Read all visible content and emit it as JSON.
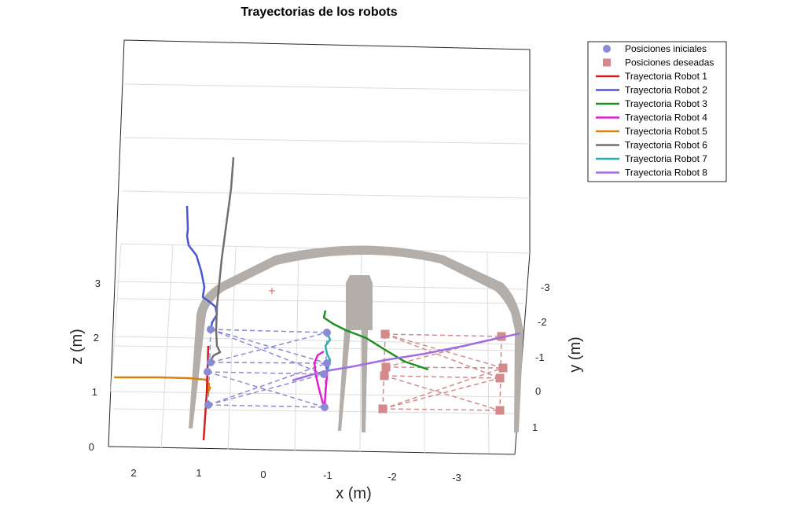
{
  "chart_data": {
    "type": "line3d",
    "title": "Trayectorias de los robots",
    "xlabel": "x (m)",
    "ylabel": "y (m)",
    "zlabel": "z (m)",
    "xticks": [
      "2",
      "1",
      "0",
      "-1",
      "-2",
      "-3"
    ],
    "yticks": [
      "-3",
      "-2",
      "-1",
      "0",
      "1"
    ],
    "zticks": [
      "0",
      "1",
      "2",
      "3"
    ],
    "grid": true,
    "legend_position": "top-right",
    "legend": [
      {
        "label": "Posiciones iniciales",
        "marker": "circle",
        "color": "#8a8ad6"
      },
      {
        "label": "Posiciones deseadas",
        "marker": "square",
        "color": "#d48a8a"
      },
      {
        "label": "Trayectoria Robot 1",
        "color": "#d11f1f"
      },
      {
        "label": "Trayectoria Robot 2",
        "color": "#4a55d8"
      },
      {
        "label": "Trayectoria Robot 3",
        "color": "#1f8f1f"
      },
      {
        "label": "Trayectoria Robot 4",
        "color": "#e01fd0"
      },
      {
        "label": "Trayectoria Robot 5",
        "color": "#d9820f"
      },
      {
        "label": "Trayectoria Robot 6",
        "color": "#707070"
      },
      {
        "label": "Trayectoria Robot 7",
        "color": "#26b0b0"
      },
      {
        "label": "Trayectoria Robot 8",
        "color": "#a06ee0"
      }
    ],
    "colors": {
      "structure": "#b3aea9",
      "grid": "#dcdcdc",
      "initial_edges": "#8a8ad6",
      "desired_edges": "#d48a8a"
    }
  }
}
